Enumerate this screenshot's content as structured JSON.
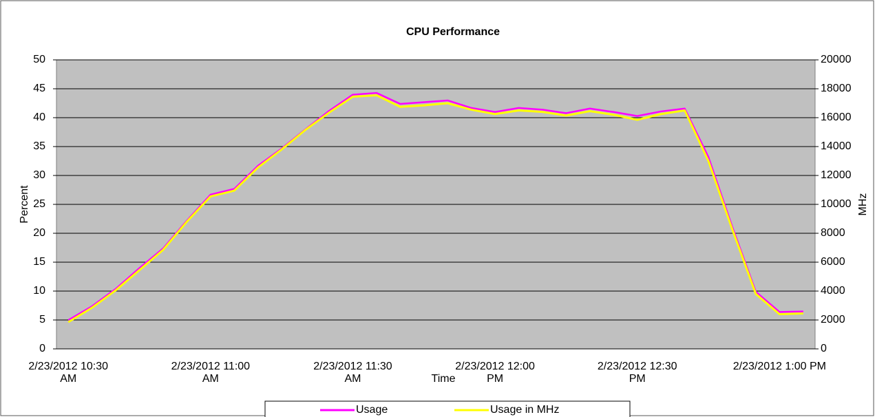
{
  "chart_data": {
    "type": "line",
    "title": "CPU Performance",
    "x_label": "Time",
    "y_label": "Percent",
    "y2_label": "MHz",
    "categories": [
      "2/23/2012 10:30 AM",
      null,
      null,
      null,
      null,
      null,
      "2/23/2012 11:00 AM",
      null,
      null,
      null,
      null,
      null,
      "2/23/2012 11:30 AM",
      null,
      null,
      null,
      null,
      null,
      "2/23/2012 12:00 PM",
      null,
      null,
      null,
      null,
      null,
      "2/23/2012 12:30 PM",
      null,
      null,
      null,
      null,
      null,
      "2/23/2012 1:00 PM",
      null
    ],
    "series": [
      {
        "name": "Usage",
        "color": "#ff00ff",
        "values": [
          4.8,
          7.2,
          10.2,
          13.8,
          17.2,
          22,
          26.5,
          27.5,
          31.5,
          34.5,
          37.8,
          41,
          43.8,
          44.1,
          42.2,
          42.5,
          42.8,
          41.5,
          40.8,
          41.5,
          41.2,
          40.6,
          41.4,
          40.8,
          40.1,
          40.9,
          41.4,
          33,
          21,
          9.7,
          6.2,
          6.3
        ]
      },
      {
        "name": "Usage in MHz",
        "color": "#ffff00",
        "axis": "y2",
        "values": [
          1850,
          2850,
          4050,
          5450,
          6850,
          8800,
          10550,
          10950,
          12550,
          13800,
          15150,
          16350,
          17450,
          17550,
          16750,
          16850,
          17000,
          16550,
          16250,
          16500,
          16400,
          16150,
          16450,
          16200,
          15850,
          16250,
          16500,
          13000,
          8300,
          3800,
          2400,
          2450
        ]
      }
    ],
    "ylim": [
      0,
      50
    ],
    "yticks": [
      0,
      5,
      10,
      15,
      20,
      25,
      30,
      35,
      40,
      45,
      50
    ],
    "y2lim": [
      0,
      20000
    ],
    "y2ticks": [
      0,
      2000,
      4000,
      6000,
      8000,
      10000,
      12000,
      14000,
      16000,
      18000,
      20000
    ],
    "grid": true,
    "legend": "bottom"
  }
}
